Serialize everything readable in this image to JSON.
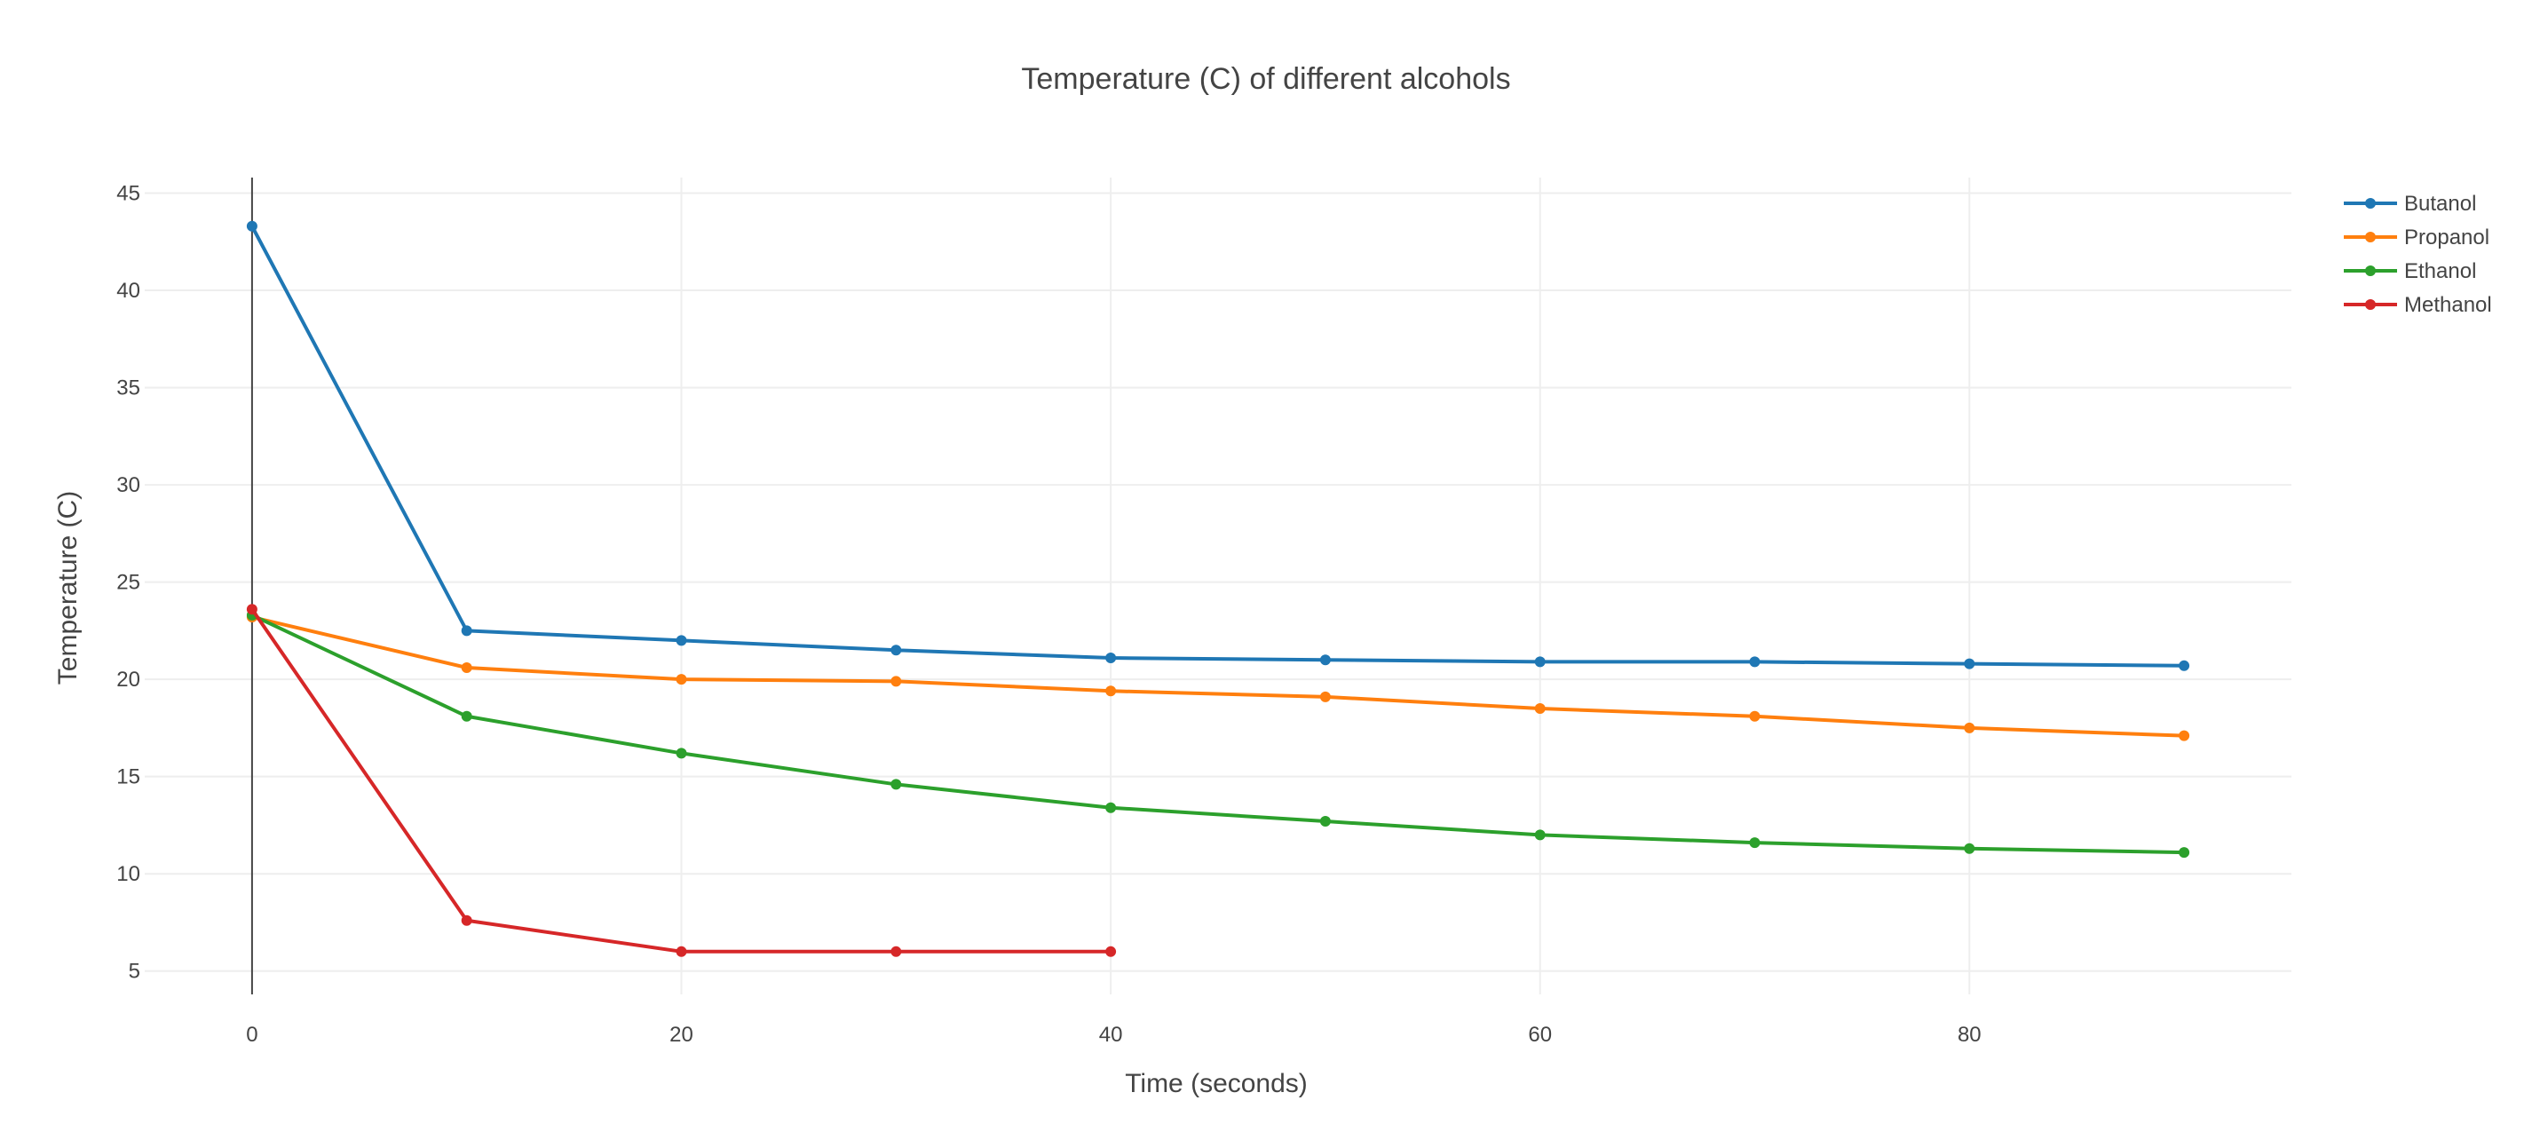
{
  "chart_data": {
    "type": "line",
    "title": "Temperature (C) of different alcohols",
    "xlabel": "Time (seconds)",
    "ylabel": "Temperature (C)",
    "xlim": [
      -5,
      95
    ],
    "ylim": [
      3.8,
      45.8
    ],
    "x_ticks": [
      0,
      20,
      40,
      60,
      80
    ],
    "y_ticks": [
      5,
      10,
      15,
      20,
      25,
      30,
      35,
      40,
      45
    ],
    "grid": true,
    "legend_position": "top-right",
    "series": [
      {
        "name": "Butanol",
        "color": "#1f77b4",
        "x": [
          0,
          10,
          20,
          30,
          40,
          50,
          60,
          70,
          80,
          90
        ],
        "y": [
          43.3,
          22.5,
          22.0,
          21.5,
          21.1,
          21.0,
          20.9,
          20.9,
          20.8,
          20.7
        ]
      },
      {
        "name": "Propanol",
        "color": "#ff7f0e",
        "x": [
          0,
          10,
          20,
          30,
          40,
          50,
          60,
          70,
          80,
          90
        ],
        "y": [
          23.2,
          20.6,
          20.0,
          19.9,
          19.4,
          19.1,
          18.5,
          18.1,
          17.5,
          17.1
        ]
      },
      {
        "name": "Ethanol",
        "color": "#2ca02c",
        "x": [
          0,
          10,
          20,
          30,
          40,
          50,
          60,
          70,
          80,
          90
        ],
        "y": [
          23.3,
          18.1,
          16.2,
          14.6,
          13.4,
          12.7,
          12.0,
          11.6,
          11.3,
          11.1
        ]
      },
      {
        "name": "Methanol",
        "color": "#d62728",
        "x": [
          0,
          10,
          20,
          30,
          40
        ],
        "y": [
          23.6,
          7.6,
          6.0,
          6.0,
          6.0
        ]
      }
    ]
  }
}
